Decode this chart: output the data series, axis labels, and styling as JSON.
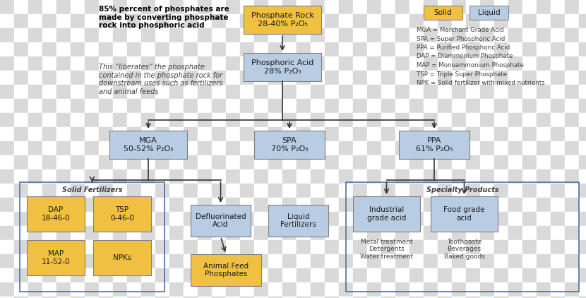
{
  "bg_color": "#ffffff",
  "checker_color": "#d9d9d9",
  "gold": "#F0C040",
  "light_blue": "#B8CCE4",
  "text_dark": "#404040",
  "node_phosphate_rock": "Phosphate Rock\n28-40% P₂O₅",
  "node_phosphoric_acid": "Phosphoric Acid\n28% P₂O₅",
  "node_MGA": "MGA\n50-52% P₂O₅",
  "node_SPA": "SPA\n70% P₂O₅",
  "node_PPA": "PPA\n61% P₂O₅",
  "node_DAP": "DAP\n18-46-0",
  "node_TSP": "TSP\n0-46-0",
  "node_MAP": "MAP\n11-52-0",
  "node_NPKs": "NPKs",
  "node_defluorinated": "Defluorinated\nAcid",
  "node_liquid_fert": "Liquid\nFertilizers",
  "node_animal_feed": "Animal Feed\nPhosphates",
  "node_industrial": "Industrial\ngrade acid",
  "node_food_grade": "Food grade\nacid",
  "label_solid_fert": "Solid Fertilizers",
  "label_specialty": "Specialty Products",
  "specialty_left": "Metal treatment\nDetergents\nWater treatment",
  "specialty_right": "Toothpaste\nBeverages\nBaked goods",
  "legend_solid": "Solid",
  "legend_liquid": "Liquid",
  "abbrev": [
    "MGA = Merchant Grade Acid",
    "SPA = Super Phosphoric Acid",
    "PPA = Purified Phosphoric Acid",
    "DAP = Diammonium Phosphate",
    "MAP = Monoammonium Phosphate",
    "TSP = Triple Super Phosphate",
    "NPK = Solid fertilizer with mixed nutrients"
  ],
  "title_text1": "85% percent of phosphates are\nmade by converting phosphate\nrock into phosphoric acid",
  "title_text2": "This “liberates” the phosphate\ncontained in the phosphate rock for\ndownstream uses such as fertilizers\nand animal feeds",
  "checker_size": 20
}
